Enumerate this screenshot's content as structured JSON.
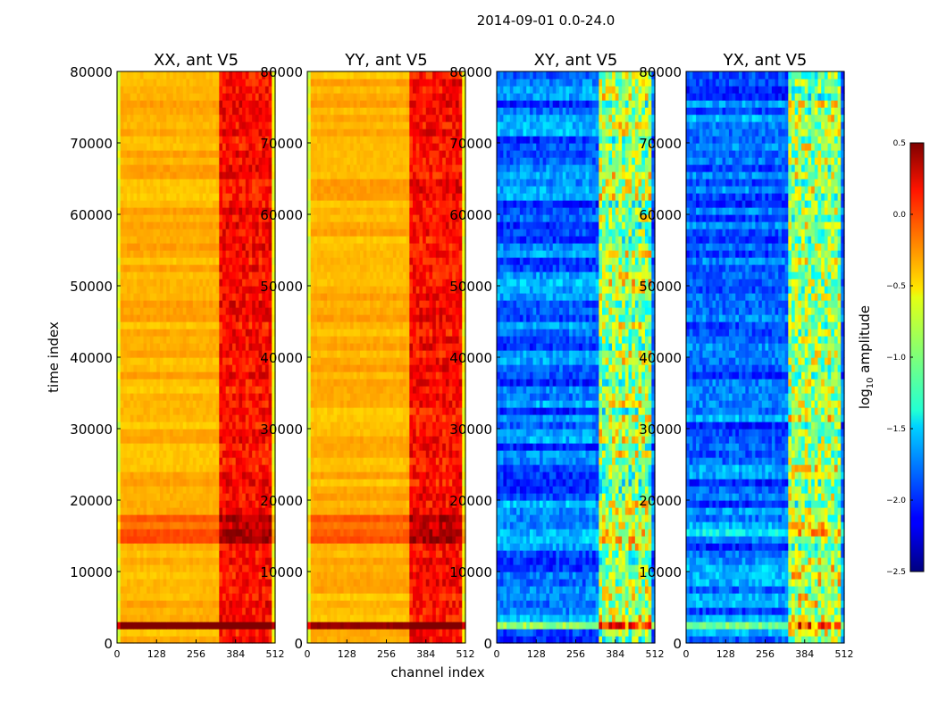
{
  "figure": {
    "suptitle": "2014-09-01 0.0-24.0"
  },
  "chart_data": {
    "type": "heatmap",
    "xlabel": "channel index",
    "ylabel": "time index",
    "x_range": [
      0,
      512
    ],
    "y_range": [
      0,
      80000
    ],
    "x_ticks": [
      "0",
      "128",
      "256",
      "384",
      "512"
    ],
    "y_ticks": [
      "0",
      "10000",
      "20000",
      "30000",
      "40000",
      "50000",
      "60000",
      "70000",
      "80000"
    ],
    "panels": [
      {
        "title": "XX, ant V5",
        "polarization": "XX",
        "base_log_amplitude": -0.4,
        "band_log_amplitude": 0.1,
        "rfi_band_channels": [
          330,
          500
        ]
      },
      {
        "title": "YY, ant V5",
        "polarization": "YY",
        "base_log_amplitude": -0.4,
        "band_log_amplitude": 0.1,
        "rfi_band_channels": [
          330,
          500
        ]
      },
      {
        "title": "XY, ant V5",
        "polarization": "XY",
        "base_log_amplitude": -1.8,
        "band_log_amplitude": -0.9,
        "rfi_band_channels": [
          330,
          500
        ]
      },
      {
        "title": "YX, ant V5",
        "polarization": "YX",
        "base_log_amplitude": -1.8,
        "band_log_amplitude": -0.9,
        "rfi_band_channels": [
          330,
          500
        ]
      }
    ],
    "colorbar": {
      "label_prefix": "log",
      "label_sub": "10",
      "label_suffix": " amplitude",
      "range": [
        -2.5,
        0.5
      ],
      "ticks": [
        "0.5",
        "0.0",
        "−0.5",
        "−1.0",
        "−1.5",
        "−2.0",
        "−2.5"
      ],
      "colormap": "jet"
    }
  }
}
